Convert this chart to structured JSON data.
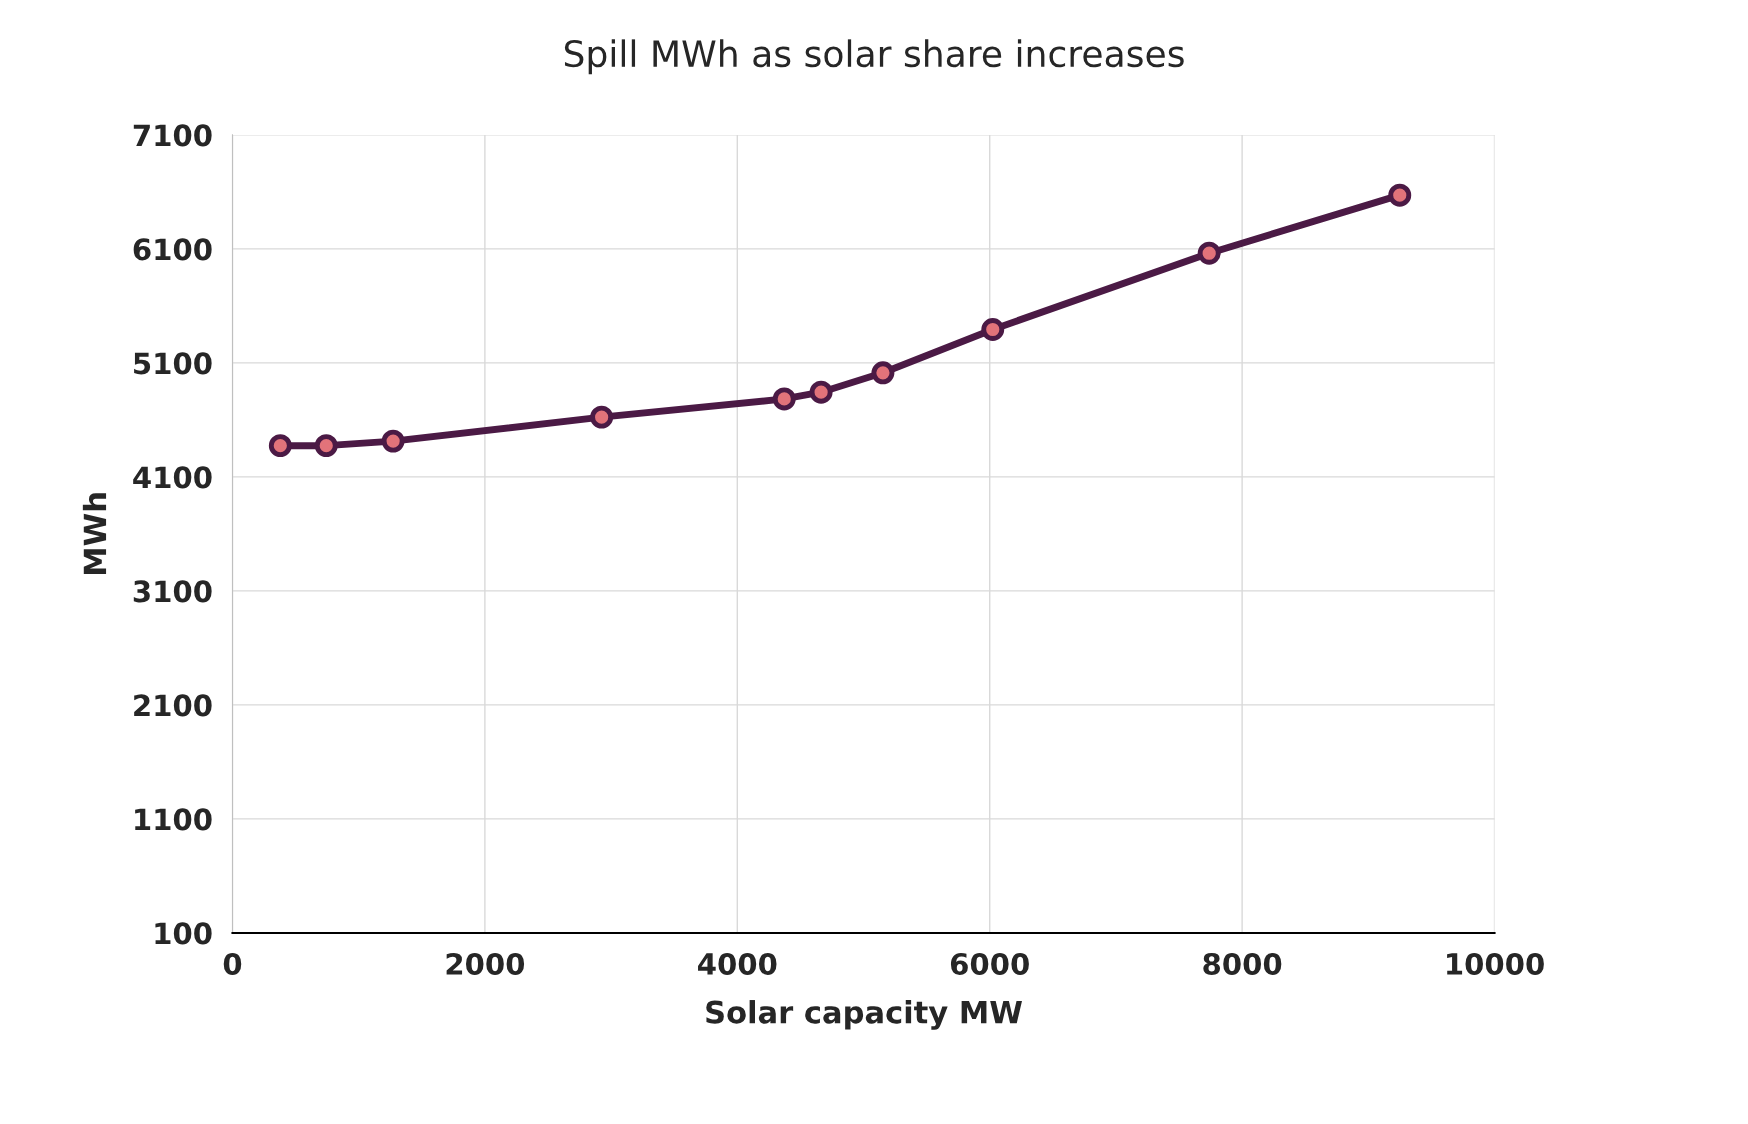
{
  "chart_data": {
    "type": "line",
    "title": "Spill MWh as solar share increases",
    "xlabel": "Solar capacity MW",
    "ylabel": "MWh",
    "x": [
      379,
      743,
      1273,
      2925,
      4372,
      4664,
      5154,
      6024,
      7739,
      9249
    ],
    "series": [
      {
        "color": "#4b1a45",
        "values": [
          4374,
          4374,
          4414,
          4624,
          4784,
          4843,
          5013,
          5393,
          6062,
          6571
        ]
      }
    ],
    "xlim": [
      0,
      10000
    ],
    "xticks": [
      0,
      2000,
      4000,
      6000,
      8000,
      10000
    ],
    "ylim": [
      100,
      7100
    ],
    "yticks": [
      100,
      1100,
      2100,
      3100,
      4100,
      5100,
      6100,
      7100
    ],
    "grid": true,
    "marker": "circle",
    "line_style": "solid"
  }
}
